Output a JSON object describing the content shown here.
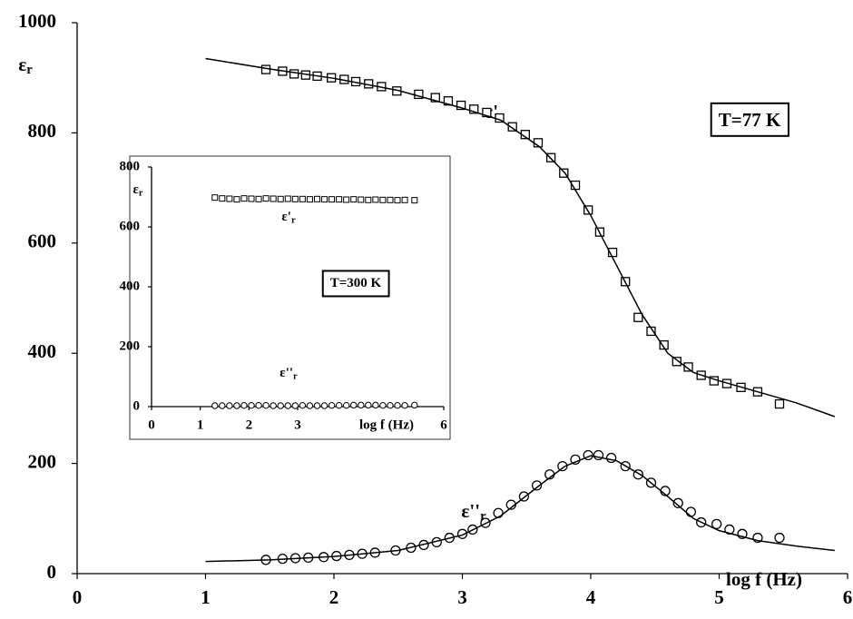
{
  "chart_data": [
    {
      "type": "scatter",
      "xlabel": "log f (Hz)",
      "ylabel": {
        "text": "ε",
        "sub": "r"
      },
      "xlim": [
        0,
        6
      ],
      "xticks": [
        0,
        1,
        2,
        3,
        4,
        5,
        6
      ],
      "ylim": [
        0,
        1000
      ],
      "yticks": [
        0,
        200,
        400,
        600,
        800,
        1000
      ],
      "annotations": [
        {
          "text": "ε'",
          "sub": "r"
        },
        {
          "text": "ε''",
          "sub": "r"
        },
        {
          "text": "T=77 K",
          "boxed": true
        }
      ],
      "series": [
        {
          "marker": "square",
          "color": "#000000",
          "x": [
            1.47,
            1.6,
            1.69,
            1.78,
            1.87,
            1.98,
            2.08,
            2.17,
            2.27,
            2.37,
            2.49,
            2.66,
            2.79,
            2.89,
            2.99,
            3.09,
            3.19,
            3.29,
            3.39,
            3.49,
            3.59,
            3.69,
            3.79,
            3.88,
            3.98,
            4.07,
            4.17,
            4.27,
            4.37,
            4.47,
            4.57,
            4.67,
            4.76,
            4.86,
            4.96,
            5.06,
            5.17,
            5.3,
            5.47
          ],
          "values": [
            915,
            912,
            907,
            905,
            903,
            900,
            897,
            893,
            889,
            884,
            876,
            870,
            864,
            858,
            850,
            843,
            837,
            827,
            811,
            797,
            782,
            755,
            727,
            705,
            660,
            620,
            583,
            530,
            465,
            440,
            415,
            385,
            375,
            360,
            350,
            345,
            338,
            330,
            308
          ]
        },
        {
          "marker": "circle",
          "color": "#000000",
          "x": [
            1.47,
            1.6,
            1.7,
            1.8,
            1.92,
            2.02,
            2.12,
            2.22,
            2.32,
            2.48,
            2.6,
            2.7,
            2.8,
            2.9,
            3.0,
            3.08,
            3.18,
            3.28,
            3.38,
            3.48,
            3.58,
            3.68,
            3.78,
            3.88,
            3.98,
            4.06,
            4.16,
            4.27,
            4.37,
            4.47,
            4.58,
            4.68,
            4.78,
            4.86,
            4.98,
            5.08,
            5.18,
            5.3,
            5.47
          ],
          "values": [
            25,
            27,
            28,
            29,
            30,
            32,
            34,
            36,
            38,
            42,
            47,
            52,
            57,
            65,
            72,
            80,
            92,
            110,
            125,
            140,
            160,
            180,
            195,
            207,
            215,
            215,
            210,
            195,
            180,
            165,
            150,
            128,
            112,
            93,
            90,
            80,
            72,
            65,
            65
          ]
        },
        {
          "marker": "none",
          "line": true,
          "color": "#000000",
          "x": [
            1.0,
            1.5,
            2.0,
            2.5,
            3.0,
            3.3,
            3.6,
            3.8,
            4.0,
            4.2,
            4.4,
            4.6,
            4.8,
            5.0,
            5.3,
            5.6,
            5.9
          ],
          "values": [
            935,
            916,
            899,
            877,
            845,
            823,
            775,
            727,
            650,
            560,
            470,
            400,
            365,
            350,
            330,
            310,
            285
          ]
        },
        {
          "marker": "none",
          "line": true,
          "color": "#000000",
          "x": [
            1.0,
            1.5,
            2.0,
            2.5,
            3.0,
            3.3,
            3.6,
            3.8,
            4.0,
            4.2,
            4.4,
            4.6,
            4.8,
            5.0,
            5.3,
            5.6,
            5.9
          ],
          "values": [
            22,
            25,
            31,
            42,
            70,
            105,
            160,
            195,
            214,
            205,
            178,
            140,
            100,
            78,
            60,
            50,
            42
          ]
        }
      ]
    },
    {
      "type": "scatter",
      "xlabel": "log f (Hz)",
      "ylabel": {
        "text": "ε",
        "sub": "r"
      },
      "xlim": [
        0,
        6
      ],
      "xticks": [
        0,
        1,
        2,
        3,
        6
      ],
      "ylim": [
        0,
        800
      ],
      "yticks": [
        0,
        200,
        400,
        600,
        800
      ],
      "annotations": [
        {
          "text": "ε'",
          "sub": "r"
        },
        {
          "text": "ε''",
          "sub": "r"
        },
        {
          "text": "T=300 K",
          "boxed": true
        }
      ],
      "series": [
        {
          "marker": "square",
          "color": "#000000",
          "x": [
            1.3,
            1.45,
            1.6,
            1.75,
            1.9,
            2.05,
            2.2,
            2.35,
            2.5,
            2.65,
            2.8,
            2.95,
            3.1,
            3.25,
            3.4,
            3.55,
            3.7,
            3.85,
            4.0,
            4.15,
            4.3,
            4.45,
            4.6,
            4.75,
            4.9,
            5.05,
            5.2,
            5.4
          ],
          "values": [
            698,
            695,
            694,
            692,
            695,
            694,
            693,
            695,
            694,
            693,
            694,
            693,
            693,
            692,
            693,
            692,
            692,
            692,
            691,
            692,
            691,
            690,
            691,
            690,
            690,
            689,
            690,
            689
          ]
        },
        {
          "marker": "circle",
          "color": "#000000",
          "x": [
            1.3,
            1.45,
            1.6,
            1.75,
            1.9,
            2.05,
            2.2,
            2.35,
            2.5,
            2.65,
            2.8,
            2.95,
            3.1,
            3.25,
            3.4,
            3.55,
            3.7,
            3.85,
            4.0,
            4.15,
            4.3,
            4.45,
            4.6,
            4.75,
            4.9,
            5.05,
            5.2,
            5.4
          ],
          "values": [
            3,
            3,
            3,
            3,
            4,
            4,
            4,
            4,
            3,
            3,
            3,
            3,
            4,
            3,
            3,
            3,
            4,
            4,
            4,
            5,
            5,
            5,
            5,
            4,
            4,
            4,
            4,
            5
          ]
        }
      ]
    }
  ]
}
